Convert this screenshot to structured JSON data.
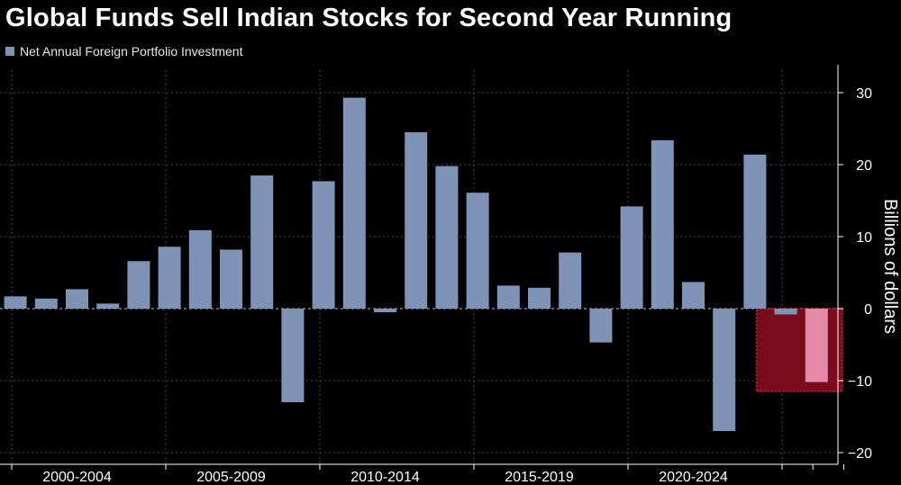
{
  "header": {
    "title": "Global Funds Sell Indian Stocks for Second Year Running"
  },
  "colors": {
    "bar": "#7e93b6",
    "highlight_fill": "#7a0c1c",
    "highlight_bar": "#e48aa8",
    "highlight_border": "#d0243c",
    "grid": "#4a4a4a",
    "background": "#000000"
  },
  "chart_data": {
    "type": "bar",
    "title": "Global Funds Sell Indian Stocks for Second Year Running",
    "xlabel": "",
    "ylabel": "Billions of dollars",
    "ylim": [
      -22,
      34
    ],
    "yticks": [
      30,
      20,
      10,
      0,
      -10,
      -20
    ],
    "grid": true,
    "legend_position": "top-left",
    "series": [
      {
        "name": "Net Annual Foreign Portfolio Investment",
        "x": [
          2000,
          2001,
          2002,
          2003,
          2004,
          2005,
          2006,
          2007,
          2008,
          2009,
          2010,
          2011,
          2012,
          2013,
          2014,
          2015,
          2016,
          2017,
          2018,
          2019,
          2020,
          2021,
          2022,
          2023,
          2024,
          2025
        ],
        "values": [
          1.7,
          1.4,
          2.7,
          0.7,
          6.6,
          8.6,
          10.9,
          8.2,
          18.5,
          -13.0,
          17.7,
          29.3,
          -0.5,
          24.5,
          19.8,
          16.1,
          3.2,
          2.9,
          7.8,
          -4.7,
          14.2,
          23.4,
          3.7,
          -17.0,
          21.4,
          -0.8
        ]
      }
    ],
    "highlight": {
      "x": [
        2026
      ],
      "values": [
        -10.2
      ],
      "region_ymin": -11.5,
      "region_ymax": 0
    },
    "category_groups": [
      {
        "label": "2000-2004",
        "start": 2000,
        "end": 2004
      },
      {
        "label": "2005-2009",
        "start": 2005,
        "end": 2009
      },
      {
        "label": "2010-2014",
        "start": 2010,
        "end": 2014
      },
      {
        "label": "2015-2019",
        "start": 2015,
        "end": 2019
      },
      {
        "label": "2020-2024",
        "start": 2020,
        "end": 2024
      }
    ]
  }
}
